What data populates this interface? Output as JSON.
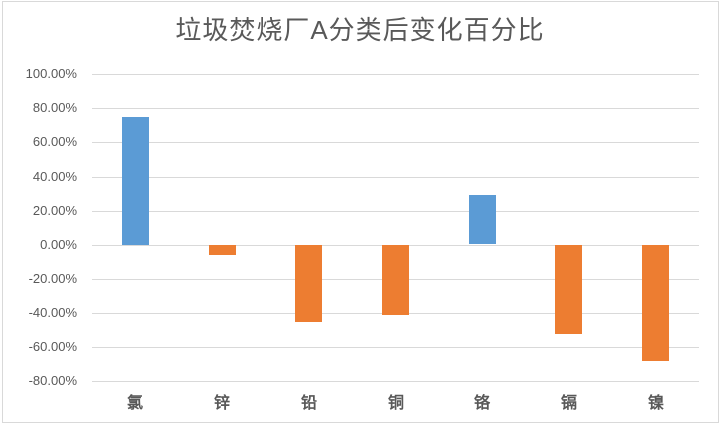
{
  "chart_data": {
    "type": "bar",
    "title": "垃圾焚烧厂A分类后变化百分比",
    "categories": [
      "氯",
      "锌",
      "铅",
      "铜",
      "铬",
      "镉",
      "镍"
    ],
    "values": [
      75,
      -6,
      -45,
      -41,
      29,
      -52,
      -68
    ],
    "unit": "percent",
    "xlabel": "",
    "ylabel": "",
    "ylim": [
      -80,
      100
    ],
    "ytick_step": 20,
    "ytick_labels": [
      "100.00%",
      "80.00%",
      "60.00%",
      "40.00%",
      "20.00%",
      "0.00%",
      "-20.00%",
      "-40.00%",
      "-60.00%",
      "-80.00%"
    ],
    "grid": true,
    "legend_position": "none",
    "colors": {
      "positive_bar": "#5B9BD5",
      "negative_bar": "#ED7D31",
      "gridline": "#D9D9D9",
      "axis_text": "#595959",
      "title_text": "#595959",
      "chart_border": "#D9D9D9"
    }
  }
}
